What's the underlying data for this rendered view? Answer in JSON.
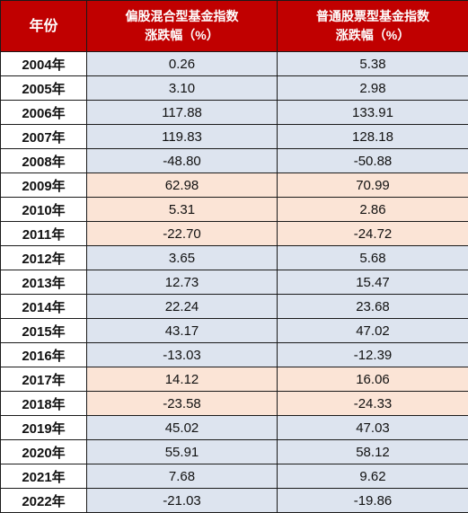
{
  "table": {
    "headers": {
      "year": "年份",
      "col1_line1": "偏股混合型基金指数",
      "col1_line2": "涨跌幅（%）",
      "col2_line1": "普通股票型基金指数",
      "col2_line2": "涨跌幅（%）"
    },
    "rows": [
      {
        "year": "2004年",
        "hybrid": "0.26",
        "stock": "5.38",
        "shade": "blue"
      },
      {
        "year": "2005年",
        "hybrid": "3.10",
        "stock": "2.98",
        "shade": "blue"
      },
      {
        "year": "2006年",
        "hybrid": "117.88",
        "stock": "133.91",
        "shade": "blue"
      },
      {
        "year": "2007年",
        "hybrid": "119.83",
        "stock": "128.18",
        "shade": "blue"
      },
      {
        "year": "2008年",
        "hybrid": "-48.80",
        "stock": "-50.88",
        "shade": "blue"
      },
      {
        "year": "2009年",
        "hybrid": "62.98",
        "stock": "70.99",
        "shade": "orange"
      },
      {
        "year": "2010年",
        "hybrid": "5.31",
        "stock": "2.86",
        "shade": "orange"
      },
      {
        "year": "2011年",
        "hybrid": "-22.70",
        "stock": "-24.72",
        "shade": "orange"
      },
      {
        "year": "2012年",
        "hybrid": "3.65",
        "stock": "5.68",
        "shade": "blue"
      },
      {
        "year": "2013年",
        "hybrid": "12.73",
        "stock": "15.47",
        "shade": "blue"
      },
      {
        "year": "2014年",
        "hybrid": "22.24",
        "stock": "23.68",
        "shade": "blue"
      },
      {
        "year": "2015年",
        "hybrid": "43.17",
        "stock": "47.02",
        "shade": "blue"
      },
      {
        "year": "2016年",
        "hybrid": "-13.03",
        "stock": "-12.39",
        "shade": "blue"
      },
      {
        "year": "2017年",
        "hybrid": "14.12",
        "stock": "16.06",
        "shade": "orange"
      },
      {
        "year": "2018年",
        "hybrid": "-23.58",
        "stock": "-24.33",
        "shade": "orange"
      },
      {
        "year": "2019年",
        "hybrid": "45.02",
        "stock": "47.03",
        "shade": "blue"
      },
      {
        "year": "2020年",
        "hybrid": "55.91",
        "stock": "58.12",
        "shade": "blue"
      },
      {
        "year": "2021年",
        "hybrid": "7.68",
        "stock": "9.62",
        "shade": "blue"
      },
      {
        "year": "2022年",
        "hybrid": "-21.03",
        "stock": "-19.86",
        "shade": "blue"
      }
    ]
  },
  "colors": {
    "header_bg": "#c00000",
    "header_text": "#ffffff",
    "row_blue": "#dde4ef",
    "row_orange": "#fbe4d6"
  }
}
